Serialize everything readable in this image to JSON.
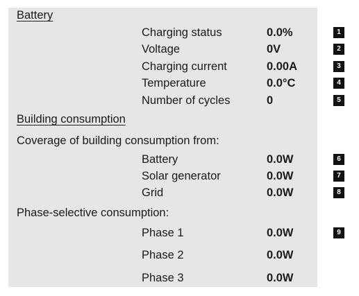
{
  "battery": {
    "heading": "Battery",
    "rows": [
      {
        "label": "Charging status",
        "value": "0.0%",
        "badge": "1"
      },
      {
        "label": "Voltage",
        "value": "0V",
        "badge": "2"
      },
      {
        "label": "Charging current",
        "value": "0.00A",
        "badge": "3"
      },
      {
        "label": "Temperature",
        "value": "0.0°C",
        "badge": "4"
      },
      {
        "label": "Number of cycles",
        "value": "0",
        "badge": "5"
      }
    ]
  },
  "building": {
    "heading": "Building consumption",
    "coverage_label": "Coverage of building consumption from:",
    "coverage_rows": [
      {
        "label": "Battery",
        "value": "0.0W",
        "badge": "6"
      },
      {
        "label": "Solar generator",
        "value": "0.0W",
        "badge": "7"
      },
      {
        "label": "Grid",
        "value": "0.0W",
        "badge": "8"
      }
    ],
    "phase_label": "Phase-selective consumption:",
    "phase_rows": [
      {
        "label": "Phase 1",
        "value": "0.0W",
        "badge": "9"
      },
      {
        "label": "Phase 2",
        "value": "0.0W"
      },
      {
        "label": "Phase 3",
        "value": "0.0W"
      }
    ]
  }
}
